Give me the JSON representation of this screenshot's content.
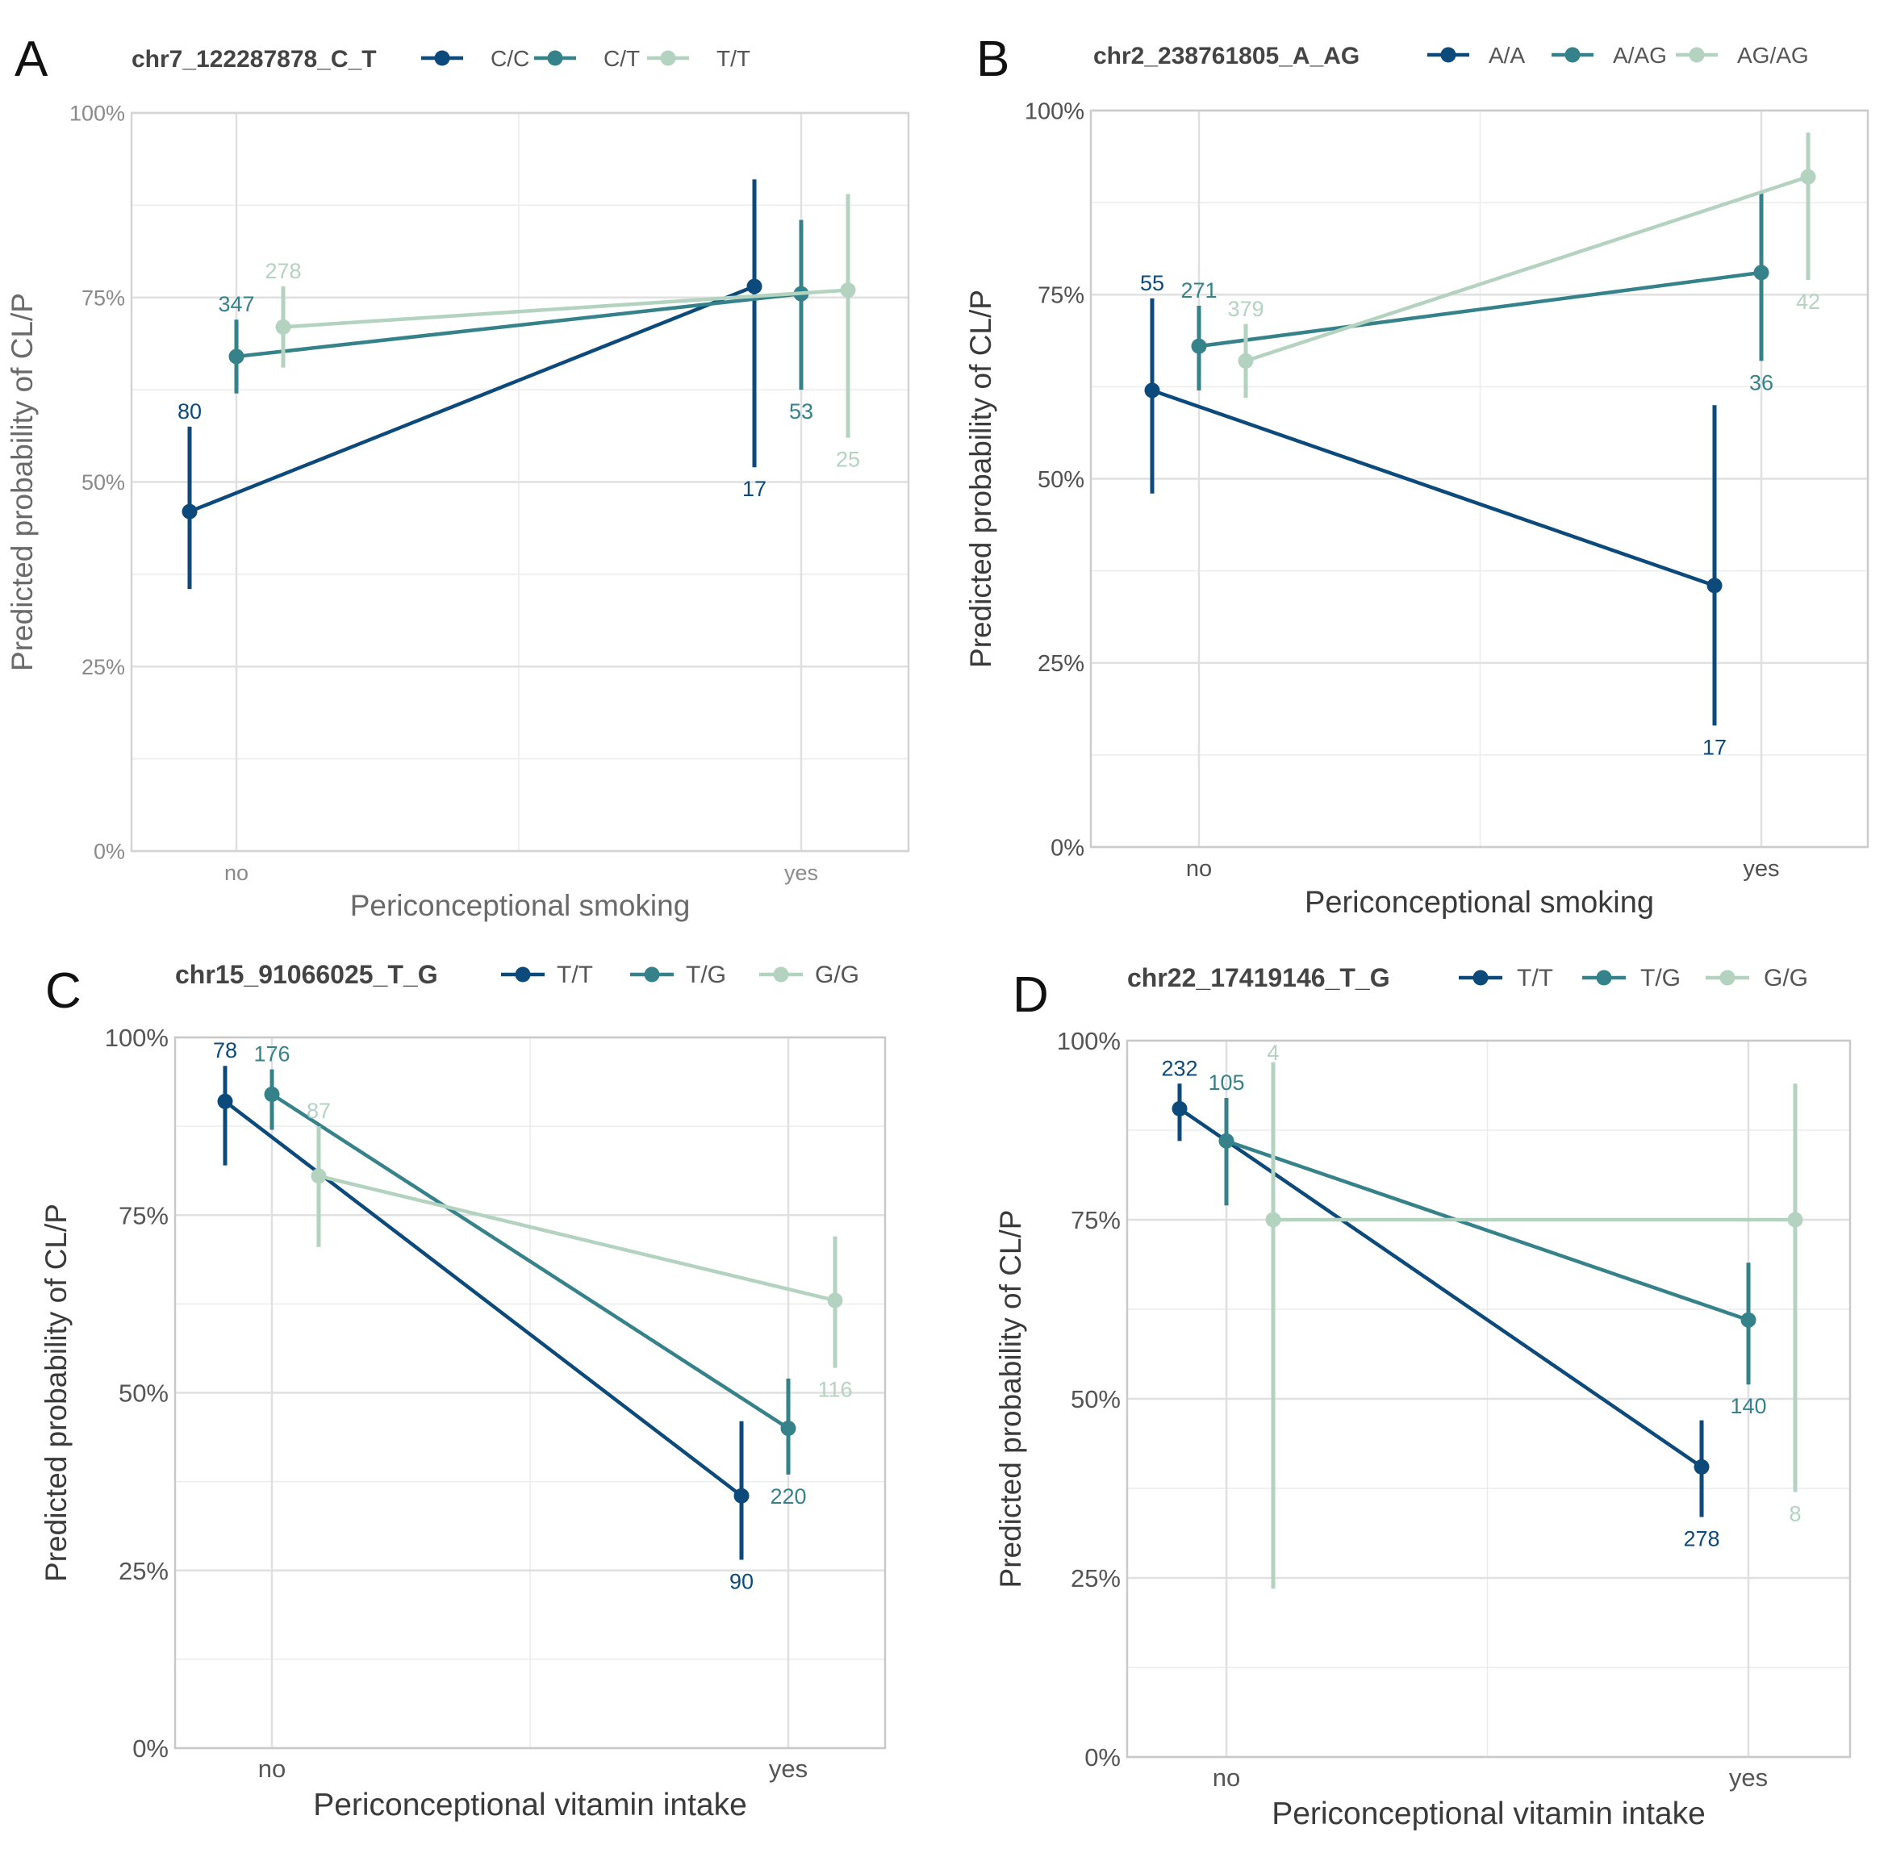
{
  "figure": {
    "y_axis_label": "Predicted probability of CL/P"
  },
  "chart_data": [
    {
      "panel": "A",
      "type": "line",
      "legend_title": "chr7_122287878_C_T",
      "xlabel": "Periconceptional smoking",
      "ylabel": "Predicted probability of CL/P",
      "categories": [
        "no",
        "yes"
      ],
      "ylim": [
        0,
        1
      ],
      "yticks": [
        0,
        0.25,
        0.5,
        0.75,
        1
      ],
      "ytick_labels": [
        "0%",
        "25%",
        "50%",
        "75%",
        "100%"
      ],
      "series": [
        {
          "name": "C/C",
          "color": "#0b4a7a",
          "values": [
            0.46,
            0.765
          ],
          "lower": [
            0.355,
            0.52
          ],
          "upper": [
            0.575,
            0.91
          ],
          "n": [
            "80",
            "17"
          ]
        },
        {
          "name": "C/T",
          "color": "#35828a",
          "values": [
            0.67,
            0.755
          ],
          "lower": [
            0.62,
            0.625
          ],
          "upper": [
            0.72,
            0.855
          ],
          "n": [
            "347",
            "53"
          ]
        },
        {
          "name": "T/T",
          "color": "#b3d3c0",
          "values": [
            0.71,
            0.76
          ],
          "lower": [
            0.655,
            0.56
          ],
          "upper": [
            0.765,
            0.89
          ],
          "n": [
            "278",
            "25"
          ]
        }
      ]
    },
    {
      "panel": "B",
      "type": "line",
      "legend_title": "chr2_238761805_A_AG",
      "xlabel": "Periconceptional smoking",
      "ylabel": "Predicted probability of CL/P",
      "categories": [
        "no",
        "yes"
      ],
      "ylim": [
        0,
        1
      ],
      "yticks": [
        0,
        0.25,
        0.5,
        0.75,
        1
      ],
      "ytick_labels": [
        "0%",
        "25%",
        "50%",
        "75%",
        "100%"
      ],
      "series": [
        {
          "name": "A/A",
          "color": "#0b4a7a",
          "values": [
            0.62,
            0.355
          ],
          "lower": [
            0.48,
            0.165
          ],
          "upper": [
            0.745,
            0.6
          ],
          "n": [
            "55",
            "17"
          ]
        },
        {
          "name": "A/AG",
          "color": "#35828a",
          "values": [
            0.68,
            0.78
          ],
          "lower": [
            0.62,
            0.66
          ],
          "upper": [
            0.735,
            0.89
          ],
          "n": [
            "271",
            "36"
          ]
        },
        {
          "name": "AG/AG",
          "color": "#b3d3c0",
          "values": [
            0.66,
            0.91
          ],
          "lower": [
            0.61,
            0.77
          ],
          "upper": [
            0.71,
            0.97
          ],
          "n": [
            "379",
            "42"
          ]
        }
      ]
    },
    {
      "panel": "C",
      "type": "line",
      "legend_title": "chr15_91066025_T_G",
      "xlabel": "Periconceptional vitamin intake",
      "ylabel": "Predicted probability of CL/P",
      "categories": [
        "no",
        "yes"
      ],
      "ylim": [
        0,
        1
      ],
      "yticks": [
        0,
        0.25,
        0.5,
        0.75,
        1
      ],
      "ytick_labels": [
        "0%",
        "25%",
        "50%",
        "75%",
        "100%"
      ],
      "series": [
        {
          "name": "T/T",
          "color": "#0b4a7a",
          "values": [
            0.91,
            0.355
          ],
          "lower": [
            0.82,
            0.265
          ],
          "upper": [
            0.96,
            0.46
          ],
          "n": [
            "78",
            "90"
          ]
        },
        {
          "name": "T/G",
          "color": "#35828a",
          "values": [
            0.92,
            0.45
          ],
          "lower": [
            0.87,
            0.385
          ],
          "upper": [
            0.955,
            0.52
          ],
          "n": [
            "176",
            "220"
          ]
        },
        {
          "name": "G/G",
          "color": "#b3d3c0",
          "values": [
            0.805,
            0.63
          ],
          "lower": [
            0.705,
            0.535
          ],
          "upper": [
            0.875,
            0.72
          ],
          "n": [
            "87",
            "116"
          ]
        }
      ]
    },
    {
      "panel": "D",
      "type": "line",
      "legend_title": "chr22_17419146_T_G",
      "xlabel": "Periconceptional vitamin intake",
      "ylabel": "Predicted probability of CL/P",
      "categories": [
        "no",
        "yes"
      ],
      "ylim": [
        0,
        1
      ],
      "yticks": [
        0,
        0.25,
        0.5,
        0.75,
        1
      ],
      "ytick_labels": [
        "0%",
        "25%",
        "50%",
        "75%",
        "100%"
      ],
      "series": [
        {
          "name": "T/T",
          "color": "#0b4a7a",
          "values": [
            0.905,
            0.405
          ],
          "lower": [
            0.86,
            0.335
          ],
          "upper": [
            0.94,
            0.47
          ],
          "n": [
            "232",
            "278"
          ]
        },
        {
          "name": "T/G",
          "color": "#35828a",
          "values": [
            0.86,
            0.61
          ],
          "lower": [
            0.77,
            0.52
          ],
          "upper": [
            0.92,
            0.69
          ],
          "n": [
            "105",
            "140"
          ]
        },
        {
          "name": "G/G",
          "color": "#b3d3c0",
          "values": [
            0.75,
            0.75
          ],
          "lower": [
            0.235,
            0.37
          ],
          "upper": [
            0.97,
            0.94
          ],
          "n": [
            "4",
            "8"
          ]
        }
      ]
    }
  ]
}
